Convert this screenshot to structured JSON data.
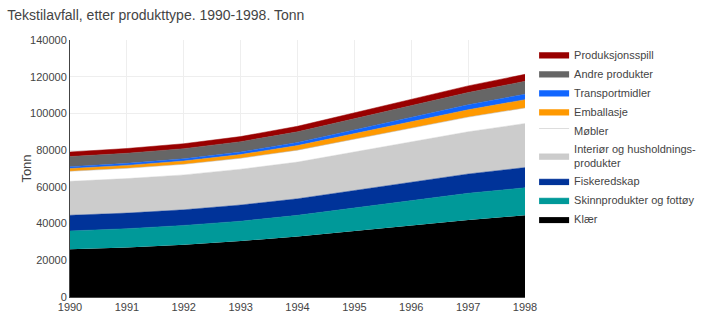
{
  "chart_data": {
    "type": "area",
    "title": "Tekstilavfall, etter produkttype. 1990-1998. Tonn",
    "ylabel": "Tonn",
    "x": [
      1990,
      1991,
      1992,
      1993,
      1994,
      1995,
      1996,
      1997,
      1998
    ],
    "series": [
      {
        "name": "Klær",
        "color": "#000000",
        "values": [
          26000,
          27000,
          28500,
          30500,
          33000,
          36000,
          39000,
          42000,
          44500
        ]
      },
      {
        "name": "Skinnprodukter og fottøy",
        "color": "#009999",
        "values": [
          10000,
          10200,
          10500,
          10800,
          11500,
          12500,
          13500,
          14500,
          15000
        ]
      },
      {
        "name": "Fiskeredskap",
        "color": "#003399",
        "values": [
          8500,
          8500,
          8500,
          8800,
          9000,
          9500,
          10000,
          10500,
          11000
        ]
      },
      {
        "name": "Interiør og husholdnings-\nprodukter",
        "color": "#cccccc",
        "values": [
          18500,
          18800,
          19000,
          19500,
          20000,
          21000,
          22000,
          23000,
          24000
        ]
      },
      {
        "name": "Møbler",
        "color": "#ffffff",
        "values": [
          5500,
          5600,
          5800,
          6000,
          6500,
          7000,
          7500,
          8000,
          8500
        ]
      },
      {
        "name": "Emballasje",
        "color": "#ff9900",
        "values": [
          1500,
          1600,
          1800,
          2000,
          2500,
          3000,
          3500,
          4000,
          4500
        ]
      },
      {
        "name": "Transportmidler",
        "color": "#1166ff",
        "values": [
          1000,
          1100,
          1200,
          1400,
          1700,
          2000,
          2300,
          2700,
          3000
        ]
      },
      {
        "name": "Andre produkter",
        "color": "#666666",
        "values": [
          5500,
          5500,
          5500,
          5600,
          5800,
          6000,
          6300,
          6700,
          7000
        ]
      },
      {
        "name": "Produksjonsspill",
        "color": "#990000",
        "values": [
          2500,
          2600,
          2700,
          2800,
          3000,
          3200,
          3400,
          3600,
          3800
        ]
      }
    ],
    "stacked": true,
    "xlim": [
      1990,
      1998
    ],
    "xticks": [
      1990,
      1991,
      1992,
      1993,
      1994,
      1995,
      1996,
      1997,
      1998
    ],
    "ylim": [
      0,
      140000
    ],
    "yticks": [
      0,
      20000,
      40000,
      60000,
      80000,
      100000,
      120000,
      140000
    ],
    "grid": true,
    "legend": "right"
  }
}
